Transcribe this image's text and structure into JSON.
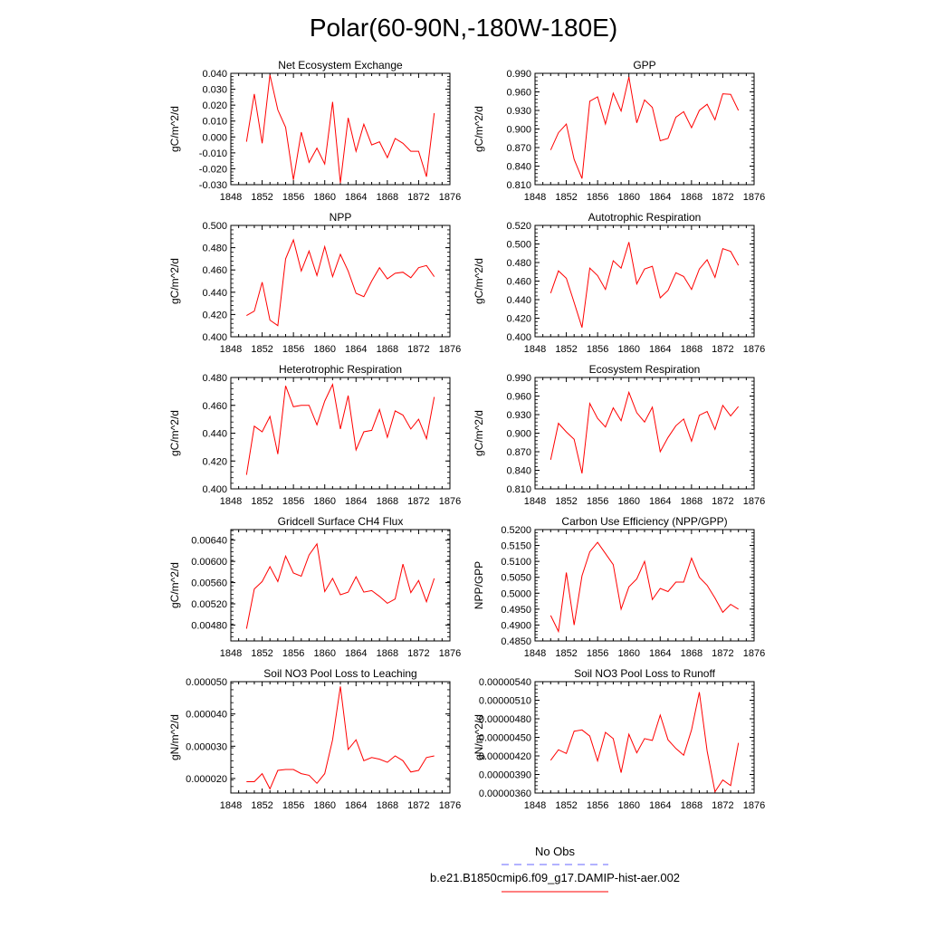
{
  "title": "Polar(60-90N,-180W-180E)",
  "colors": {
    "model": "#ff0000",
    "obs": "#6666ff",
    "axis": "#000000"
  },
  "legend": {
    "obs_label": "No Obs",
    "model_label": "b.e21.B1850cmip6.f09_g17.DAMIP-hist-aer.002"
  },
  "chart_data": [
    {
      "type": "line",
      "title": "Net Ecosystem Exchange",
      "ylabel": "gC/m^2/d",
      "xlabel": "",
      "xlim": [
        1848,
        1876
      ],
      "xticks": [
        "1848",
        "1852",
        "1856",
        "1860",
        "1864",
        "1868",
        "1872",
        "1876"
      ],
      "ylim": [
        -0.03,
        0.04
      ],
      "yticks": [
        "-0.030",
        "-0.020",
        "-0.010",
        "0.000",
        "0.010",
        "0.020",
        "0.030",
        "0.040"
      ],
      "series": [
        {
          "x_start": 1850,
          "values": [
            -0.003,
            0.027,
            -0.004,
            0.039,
            0.017,
            0.006,
            -0.027,
            0.003,
            -0.016,
            -0.007,
            -0.017,
            0.022,
            -0.029,
            0.012,
            -0.009,
            0.008,
            -0.005,
            -0.003,
            -0.013,
            -0.001,
            -0.004,
            -0.009,
            -0.009,
            -0.025,
            0.015
          ]
        }
      ]
    },
    {
      "type": "line",
      "title": "GPP",
      "ylabel": "gC/m^2/d",
      "xlabel": "",
      "xlim": [
        1848,
        1876
      ],
      "xticks": [
        "1848",
        "1852",
        "1856",
        "1860",
        "1864",
        "1868",
        "1872",
        "1876"
      ],
      "ylim": [
        0.81,
        0.99
      ],
      "yticks": [
        "0.810",
        "0.840",
        "0.870",
        "0.900",
        "0.930",
        "0.960",
        "0.990"
      ],
      "series": [
        {
          "x_start": 1850,
          "values": [
            0.866,
            0.894,
            0.908,
            0.851,
            0.82,
            0.945,
            0.952,
            0.908,
            0.958,
            0.929,
            0.984,
            0.91,
            0.947,
            0.935,
            0.881,
            0.885,
            0.919,
            0.928,
            0.902,
            0.93,
            0.94,
            0.915,
            0.957,
            0.956,
            0.93
          ]
        }
      ]
    },
    {
      "type": "line",
      "title": "NPP",
      "ylabel": "gC/m^2/d",
      "xlabel": "",
      "xlim": [
        1848,
        1876
      ],
      "xticks": [
        "1848",
        "1852",
        "1856",
        "1860",
        "1864",
        "1868",
        "1872",
        "1876"
      ],
      "ylim": [
        0.4,
        0.5
      ],
      "yticks": [
        "0.400",
        "0.420",
        "0.440",
        "0.460",
        "0.480",
        "0.500"
      ],
      "series": [
        {
          "x_start": 1850,
          "values": [
            0.419,
            0.423,
            0.449,
            0.415,
            0.41,
            0.47,
            0.487,
            0.459,
            0.477,
            0.455,
            0.481,
            0.454,
            0.474,
            0.459,
            0.439,
            0.436,
            0.45,
            0.462,
            0.452,
            0.457,
            0.458,
            0.453,
            0.462,
            0.464,
            0.454
          ]
        }
      ]
    },
    {
      "type": "line",
      "title": "Autotrophic Respiration",
      "ylabel": "gC/m^2/d",
      "xlabel": "",
      "xlim": [
        1848,
        1876
      ],
      "xticks": [
        "1848",
        "1852",
        "1856",
        "1860",
        "1864",
        "1868",
        "1872",
        "1876"
      ],
      "ylim": [
        0.4,
        0.52
      ],
      "yticks": [
        "0.400",
        "0.420",
        "0.440",
        "0.460",
        "0.480",
        "0.500",
        "0.520"
      ],
      "series": [
        {
          "x_start": 1850,
          "values": [
            0.447,
            0.471,
            0.463,
            0.437,
            0.41,
            0.474,
            0.466,
            0.451,
            0.482,
            0.474,
            0.502,
            0.457,
            0.473,
            0.476,
            0.442,
            0.45,
            0.469,
            0.465,
            0.451,
            0.473,
            0.483,
            0.464,
            0.495,
            0.492,
            0.477
          ]
        }
      ]
    },
    {
      "type": "line",
      "title": "Heterotrophic Respiration",
      "ylabel": "gC/m^2/d",
      "xlabel": "",
      "xlim": [
        1848,
        1876
      ],
      "xticks": [
        "1848",
        "1852",
        "1856",
        "1860",
        "1864",
        "1868",
        "1872",
        "1876"
      ],
      "ylim": [
        0.4,
        0.48
      ],
      "yticks": [
        "0.400",
        "0.420",
        "0.440",
        "0.460",
        "0.480"
      ],
      "series": [
        {
          "x_start": 1850,
          "values": [
            0.41,
            0.445,
            0.441,
            0.452,
            0.425,
            0.474,
            0.459,
            0.46,
            0.46,
            0.446,
            0.463,
            0.475,
            0.443,
            0.467,
            0.428,
            0.441,
            0.442,
            0.457,
            0.437,
            0.456,
            0.453,
            0.443,
            0.45,
            0.436,
            0.466
          ]
        }
      ]
    },
    {
      "type": "line",
      "title": "Ecosystem Respiration",
      "ylabel": "gC/m^2/d",
      "xlabel": "",
      "xlim": [
        1848,
        1876
      ],
      "xticks": [
        "1848",
        "1852",
        "1856",
        "1860",
        "1864",
        "1868",
        "1872",
        "1876"
      ],
      "ylim": [
        0.81,
        0.99
      ],
      "yticks": [
        "0.810",
        "0.840",
        "0.870",
        "0.900",
        "0.930",
        "0.960",
        "0.990"
      ],
      "series": [
        {
          "x_start": 1850,
          "values": [
            0.857,
            0.916,
            0.902,
            0.89,
            0.835,
            0.948,
            0.924,
            0.91,
            0.941,
            0.92,
            0.966,
            0.933,
            0.918,
            0.942,
            0.87,
            0.893,
            0.912,
            0.923,
            0.887,
            0.929,
            0.935,
            0.906,
            0.945,
            0.928,
            0.943
          ]
        }
      ]
    },
    {
      "type": "line",
      "title": "Gridcell Surface CH4 Flux",
      "ylabel": "gC/m^2/d",
      "xlabel": "",
      "xlim": [
        1848,
        1876
      ],
      "xticks": [
        "1848",
        "1852",
        "1856",
        "1860",
        "1864",
        "1868",
        "1872",
        "1876"
      ],
      "ylim": [
        0.0045,
        0.0066
      ],
      "yticks": [
        "0.00480",
        "0.00520",
        "0.00560",
        "0.00600",
        "0.00640"
      ],
      "ytick_values": [
        0.0048,
        0.0052,
        0.0056,
        0.006,
        0.0064
      ],
      "series": [
        {
          "x_start": 1850,
          "values": [
            0.00473,
            0.00548,
            0.00562,
            0.0059,
            0.00562,
            0.0061,
            0.00578,
            0.00572,
            0.00612,
            0.00633,
            0.00543,
            0.00568,
            0.00537,
            0.00542,
            0.00571,
            0.00542,
            0.00545,
            0.00534,
            0.00521,
            0.00529,
            0.00595,
            0.00541,
            0.00564,
            0.00524,
            0.00568
          ]
        }
      ]
    },
    {
      "type": "line",
      "title": "Carbon Use Efficiency (NPP/GPP)",
      "ylabel": "NPP/GPP",
      "xlabel": "",
      "xlim": [
        1848,
        1876
      ],
      "xticks": [
        "1848",
        "1852",
        "1856",
        "1860",
        "1864",
        "1868",
        "1872",
        "1876"
      ],
      "ylim": [
        0.485,
        0.52
      ],
      "yticks": [
        "0.4850",
        "0.4900",
        "0.4950",
        "0.5000",
        "0.5050",
        "0.5100",
        "0.5150",
        "0.5200"
      ],
      "series": [
        {
          "x_start": 1850,
          "values": [
            0.493,
            0.488,
            0.5065,
            0.49,
            0.5055,
            0.513,
            0.516,
            0.5125,
            0.509,
            0.495,
            0.502,
            0.5045,
            0.51,
            0.498,
            0.5015,
            0.5005,
            0.5035,
            0.5035,
            0.511,
            0.505,
            0.5025,
            0.4985,
            0.494,
            0.4965,
            0.495
          ]
        }
      ]
    },
    {
      "type": "line",
      "title": "Soil NO3 Pool Loss to Leaching",
      "ylabel": "gN/m^2/d",
      "xlabel": "",
      "xlim": [
        1848,
        1876
      ],
      "xticks": [
        "1848",
        "1852",
        "1856",
        "1860",
        "1864",
        "1868",
        "1872",
        "1876"
      ],
      "ylim": [
        1.55e-05,
        5e-05
      ],
      "yticks": [
        "0.000020",
        "0.000030",
        "0.000040",
        "0.000050"
      ],
      "ytick_values": [
        2e-05,
        3e-05,
        4e-05,
        5e-05
      ],
      "series": [
        {
          "x_start": 1850,
          "values": [
            1.9e-05,
            1.9e-05,
            2.15e-05,
            1.68e-05,
            2.25e-05,
            2.28e-05,
            2.28e-05,
            2.15e-05,
            2.1e-05,
            1.85e-05,
            2.15e-05,
            3.2e-05,
            4.85e-05,
            2.9e-05,
            3.2e-05,
            2.55e-05,
            2.65e-05,
            2.6e-05,
            2.5e-05,
            2.7e-05,
            2.55e-05,
            2.2e-05,
            2.25e-05,
            2.65e-05,
            2.7e-05
          ]
        }
      ]
    },
    {
      "type": "line",
      "title": "Soil NO3 Pool Loss to Runoff",
      "ylabel": "gN/m^2/d",
      "xlabel": "",
      "xlim": [
        1848,
        1876
      ],
      "xticks": [
        "1848",
        "1852",
        "1856",
        "1860",
        "1864",
        "1868",
        "1872",
        "1876"
      ],
      "ylim": [
        3.6e-07,
        5.4e-07
      ],
      "yticks": [
        "0.00000360",
        "0.00000390",
        "0.00000420",
        "0.00000450",
        "0.00000480",
        "0.00000510",
        "0.00000540"
      ],
      "ytick_values": [
        3.6e-07,
        3.9e-07,
        4.2e-07,
        4.5e-07,
        4.8e-07,
        5.1e-07,
        5.4e-07
      ],
      "series": [
        {
          "x_start": 1850,
          "values": [
            4.13e-07,
            4.3e-07,
            4.24e-07,
            4.6e-07,
            4.62e-07,
            4.52e-07,
            4.12e-07,
            4.58e-07,
            4.48e-07,
            3.93e-07,
            4.55e-07,
            4.25e-07,
            4.48e-07,
            4.45e-07,
            4.86e-07,
            4.46e-07,
            4.32e-07,
            4.21e-07,
            4.62e-07,
            5.23e-07,
            4.28e-07,
            3.62e-07,
            3.81e-07,
            3.72e-07,
            4.41e-07
          ]
        }
      ]
    }
  ]
}
